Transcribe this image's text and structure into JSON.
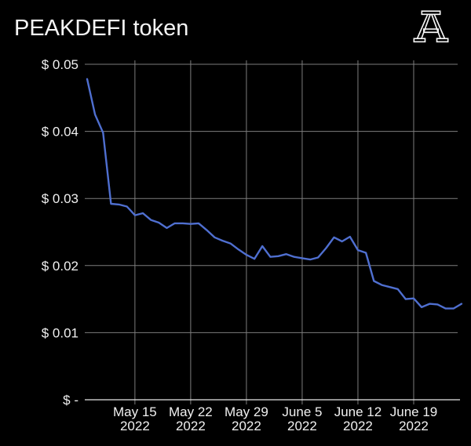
{
  "header": {
    "title": "PEAKDEFI token",
    "logo": "atlas-monogram-a"
  },
  "colors": {
    "background": "#000000",
    "title_text": "#f5f5f5",
    "axis_text": "#f0f0f0",
    "line": "#4f6fd0",
    "grid": "#7d7d7d",
    "axis_line": "#e6e6e6"
  },
  "chart_data": {
    "type": "line",
    "title": "PEAKDEFI token",
    "series_name": "PEAKDEFI token price (USD)",
    "x": [
      "May 9",
      "May 10",
      "May 11",
      "May 12",
      "May 13",
      "May 14",
      "May 15",
      "May 16",
      "May 17",
      "May 18",
      "May 19",
      "May 20",
      "May 21",
      "May 22",
      "May 23",
      "May 24",
      "May 25",
      "May 26",
      "May 27",
      "May 28",
      "May 29",
      "May 30",
      "May 31",
      "June 1",
      "June 2",
      "June 3",
      "June 4",
      "June 5",
      "June 6",
      "June 7",
      "June 8",
      "June 9",
      "June 10",
      "June 11",
      "June 12",
      "June 13",
      "June 14",
      "June 15",
      "June 16",
      "June 17",
      "June 18",
      "June 19",
      "June 20",
      "June 21",
      "June 22",
      "June 23",
      "June 24",
      "June 25"
    ],
    "values": [
      0.0478,
      0.0425,
      0.0398,
      0.0292,
      0.0291,
      0.0288,
      0.0275,
      0.0278,
      0.0268,
      0.0264,
      0.0256,
      0.0263,
      0.0263,
      0.0262,
      0.0263,
      0.0253,
      0.0242,
      0.0237,
      0.0233,
      0.0224,
      0.0216,
      0.021,
      0.0229,
      0.0213,
      0.0214,
      0.0217,
      0.0213,
      0.0211,
      0.0209,
      0.0212,
      0.0226,
      0.0242,
      0.0236,
      0.0243,
      0.0223,
      0.0219,
      0.0177,
      0.0171,
      0.0168,
      0.0165,
      0.015,
      0.0151,
      0.0138,
      0.0143,
      0.0142,
      0.0136,
      0.0136,
      0.0143
    ],
    "ylim": [
      0,
      0.05
    ],
    "y_ticks": [
      {
        "label": "$ 0.05",
        "value": 0.05
      },
      {
        "label": "$ 0.04",
        "value": 0.04
      },
      {
        "label": "$ 0.03",
        "value": 0.03
      },
      {
        "label": "$ 0.02",
        "value": 0.02
      },
      {
        "label": "$ 0.01",
        "value": 0.01
      },
      {
        "label": "$ -",
        "value": 0
      }
    ],
    "x_ticks": [
      {
        "index": 6,
        "line1": "May 15",
        "line2": "2022"
      },
      {
        "index": 13,
        "line1": "May 22",
        "line2": "2022"
      },
      {
        "index": 20,
        "line1": "May 29",
        "line2": "2022"
      },
      {
        "index": 27,
        "line1": "June 5",
        "line2": "2022"
      },
      {
        "index": 34,
        "line1": "June 12",
        "line2": "2022"
      },
      {
        "index": 41,
        "line1": "June 19",
        "line2": "2022"
      }
    ],
    "grid": true,
    "legend_position": "none"
  }
}
